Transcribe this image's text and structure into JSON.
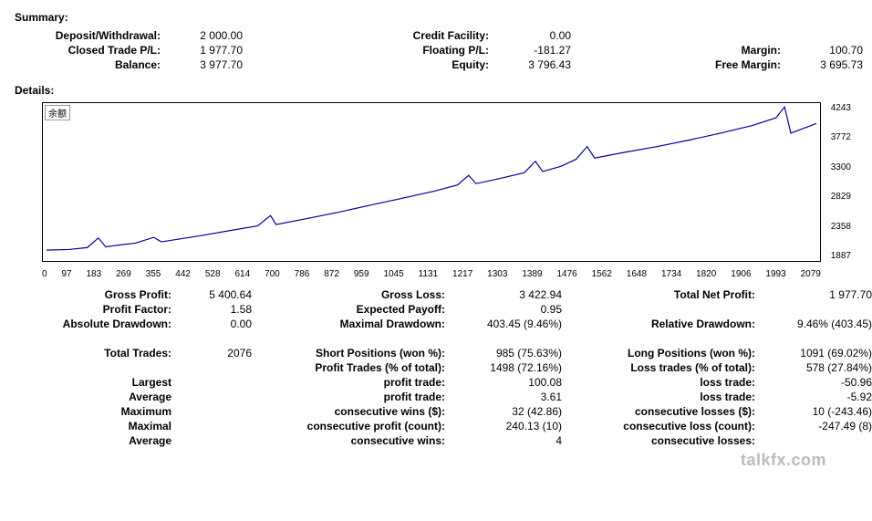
{
  "summary": {
    "title": "Summary:",
    "rows": [
      {
        "l1": "Deposit/Withdrawal:",
        "v1": "2 000.00",
        "l2": "Credit Facility:",
        "v2": "0.00",
        "l3": "",
        "v3": ""
      },
      {
        "l1": "Closed Trade P/L:",
        "v1": "1 977.70",
        "l2": "Floating P/L:",
        "v2": "-181.27",
        "l3": "Margin:",
        "v3": "100.70"
      },
      {
        "l1": "Balance:",
        "v1": "3 977.70",
        "l2": "Equity:",
        "v2": "3 796.43",
        "l3": "Free Margin:",
        "v3": "3 695.73"
      }
    ]
  },
  "details_title": "Details:",
  "chart": {
    "legend": "余额",
    "line_color": "#000099",
    "border_color": "#000000",
    "background": "#ffffff",
    "xlim": [
      0,
      2079
    ],
    "ylim": [
      1887,
      4243
    ],
    "xticks": [
      "0",
      "97",
      "183",
      "269",
      "355",
      "442",
      "528",
      "614",
      "700",
      "786",
      "872",
      "959",
      "1045",
      "1131",
      "1217",
      "1303",
      "1389",
      "1476",
      "1562",
      "1648",
      "1734",
      "1820",
      "1906",
      "1993",
      "2079"
    ],
    "yticks": [
      "4243",
      "3772",
      "3300",
      "2829",
      "2358",
      "1887"
    ],
    "points": [
      [
        0,
        2000
      ],
      [
        60,
        2010
      ],
      [
        110,
        2040
      ],
      [
        140,
        2190
      ],
      [
        160,
        2050
      ],
      [
        183,
        2070
      ],
      [
        240,
        2110
      ],
      [
        290,
        2200
      ],
      [
        310,
        2130
      ],
      [
        355,
        2170
      ],
      [
        420,
        2230
      ],
      [
        500,
        2310
      ],
      [
        570,
        2380
      ],
      [
        605,
        2540
      ],
      [
        620,
        2400
      ],
      [
        700,
        2490
      ],
      [
        786,
        2590
      ],
      [
        872,
        2700
      ],
      [
        959,
        2810
      ],
      [
        1045,
        2920
      ],
      [
        1110,
        3020
      ],
      [
        1140,
        3170
      ],
      [
        1160,
        3040
      ],
      [
        1217,
        3110
      ],
      [
        1290,
        3210
      ],
      [
        1320,
        3390
      ],
      [
        1340,
        3230
      ],
      [
        1389,
        3310
      ],
      [
        1430,
        3420
      ],
      [
        1460,
        3620
      ],
      [
        1480,
        3440
      ],
      [
        1562,
        3530
      ],
      [
        1648,
        3620
      ],
      [
        1734,
        3720
      ],
      [
        1820,
        3830
      ],
      [
        1906,
        3950
      ],
      [
        1970,
        4070
      ],
      [
        1993,
        4240
      ],
      [
        2010,
        3830
      ],
      [
        2079,
        3980
      ]
    ]
  },
  "metrics": [
    [
      {
        "l": "Gross Profit:",
        "v": "5 400.64"
      },
      {
        "l": "Gross Loss:",
        "v": "3 422.94"
      },
      {
        "l": "Total Net Profit:",
        "v": "1 977.70"
      }
    ],
    [
      {
        "l": "Profit Factor:",
        "v": "1.58"
      },
      {
        "l": "Expected Payoff:",
        "v": "0.95"
      },
      {
        "l": "",
        "v": ""
      }
    ],
    [
      {
        "l": "Absolute Drawdown:",
        "v": "0.00"
      },
      {
        "l": "Maximal Drawdown:",
        "v": "403.45 (9.46%)"
      },
      {
        "l": "Relative Drawdown:",
        "v": "9.46% (403.45)"
      }
    ]
  ],
  "metrics2": [
    [
      {
        "l": "Total Trades:",
        "v": "2076"
      },
      {
        "l": "Short Positions (won %):",
        "v": "985 (75.63%)"
      },
      {
        "l": "Long Positions (won %):",
        "v": "1091 (69.02%)"
      }
    ],
    [
      {
        "l": "",
        "v": ""
      },
      {
        "l": "Profit Trades (% of total):",
        "v": "1498 (72.16%)"
      },
      {
        "l": "Loss trades (% of total):",
        "v": "578 (27.84%)"
      }
    ],
    [
      {
        "l": "Largest",
        "v": ""
      },
      {
        "l": "profit trade:",
        "v": "100.08"
      },
      {
        "l": "loss trade:",
        "v": "-50.96"
      }
    ],
    [
      {
        "l": "Average",
        "v": ""
      },
      {
        "l": "profit trade:",
        "v": "3.61"
      },
      {
        "l": "loss trade:",
        "v": "-5.92"
      }
    ],
    [
      {
        "l": "Maximum",
        "v": ""
      },
      {
        "l": "consecutive wins ($):",
        "v": "32 (42.86)"
      },
      {
        "l": "consecutive losses ($):",
        "v": "10 (-243.46)"
      }
    ],
    [
      {
        "l": "Maximal",
        "v": ""
      },
      {
        "l": "consecutive profit (count):",
        "v": "240.13 (10)"
      },
      {
        "l": "consecutive loss (count):",
        "v": "-247.49 (8)"
      }
    ],
    [
      {
        "l": "Average",
        "v": ""
      },
      {
        "l": "consecutive wins:",
        "v": "4"
      },
      {
        "l": "consecutive losses:",
        "v": ""
      }
    ]
  ],
  "watermark": "talkfx.com"
}
